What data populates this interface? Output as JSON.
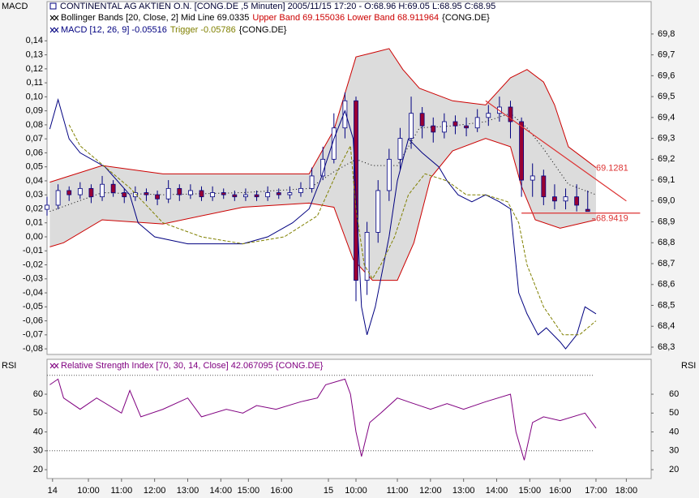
{
  "chart_data": [
    {
      "type": "candlestick",
      "title": "CONTINENTAL AG AKTIEN O.N. [CONG.DE ,5 Minuten] 2005/11/15 17:20 - O:68.96 H:69.05 L:68.95 C:68.95",
      "y_label": "MACD",
      "legend": [
        [
          {
            "text": "Bollinger Bands [20, Close, 2] Mid Line 69.0335",
            "color": "#000000"
          },
          {
            "text": "Upper Band 69.155036 Lower Band 68.911964",
            "color": "#cc0000"
          },
          {
            "text": "{CONG.DE}",
            "color": "#000000"
          }
        ],
        [
          {
            "text": "MACD [12, 26, 9] -0.05516",
            "color": "#000080"
          },
          {
            "text": "Trigger -0.05786",
            "color": "#808000"
          },
          {
            "text": "{CONG.DE}",
            "color": "#000000"
          }
        ]
      ],
      "xlim": [
        0,
        219
      ],
      "ylim": [
        -0.084,
        0.168
      ],
      "yticks": [
        {
          "value": 0.14,
          "label": "0,14"
        },
        {
          "value": 0.13,
          "label": "0,13"
        },
        {
          "value": 0.12,
          "label": "0,12"
        },
        {
          "value": 0.11,
          "label": "0,11"
        },
        {
          "value": 0.1,
          "label": "0,10"
        },
        {
          "value": 0.09,
          "label": "0,09"
        },
        {
          "value": 0.08,
          "label": "0,08"
        },
        {
          "value": 0.07,
          "label": "0,07"
        },
        {
          "value": 0.06,
          "label": "0,06"
        },
        {
          "value": 0.05,
          "label": "0,05"
        },
        {
          "value": 0.04,
          "label": "0,04"
        },
        {
          "value": 0.03,
          "label": "0,03"
        },
        {
          "value": 0.02,
          "label": "0,02"
        },
        {
          "value": 0.01,
          "label": "0,01"
        },
        {
          "value": 0,
          "label": "0,00"
        },
        {
          "value": -0.01,
          "label": "-0,01"
        },
        {
          "value": -0.02,
          "label": "-0,02"
        },
        {
          "value": -0.03,
          "label": "-0,03"
        },
        {
          "value": -0.04,
          "label": "-0,04"
        },
        {
          "value": -0.05,
          "label": "-0,05"
        },
        {
          "value": -0.06,
          "label": "-0,06"
        },
        {
          "value": -0.07,
          "label": "-0,07"
        },
        {
          "value": -0.08,
          "label": "-0,08"
        }
      ],
      "y2lim": [
        68.265,
        69.955
      ],
      "y2ticks": [
        {
          "value": 69.8,
          "label": "69,8"
        },
        {
          "value": 69.7,
          "label": "69,7"
        },
        {
          "value": 69.6,
          "label": "69,6"
        },
        {
          "value": 69.5,
          "label": "69,5"
        },
        {
          "value": 69.4,
          "label": "69,4"
        },
        {
          "value": 69.3,
          "label": "69,3"
        },
        {
          "value": 69.2,
          "label": "69,2"
        },
        {
          "value": 69.1,
          "label": "69,1"
        },
        {
          "value": 69.0,
          "label": "69,0"
        },
        {
          "value": 68.9,
          "label": "68,9"
        },
        {
          "value": 68.8,
          "label": "68,8"
        },
        {
          "value": 68.7,
          "label": "68,7"
        },
        {
          "value": 68.6,
          "label": "68,6"
        },
        {
          "value": 68.5,
          "label": "68,5"
        },
        {
          "value": 68.4,
          "label": "68,4"
        },
        {
          "value": 68.3,
          "label": "68,3"
        }
      ],
      "candles": {
        "axis": "y2",
        "up_color": "#ffffff",
        "down_color": "#990033",
        "wick_color": "#000080",
        "x": [
          0,
          4,
          8,
          12,
          16,
          20,
          24,
          28,
          32,
          36,
          40,
          44,
          48,
          52,
          56,
          60,
          64,
          68,
          72,
          76,
          80,
          84,
          88,
          92,
          96,
          100,
          104,
          108,
          112,
          116,
          120,
          124,
          128,
          132,
          136,
          140,
          144,
          148,
          152,
          156,
          160,
          164,
          168,
          172,
          176,
          180,
          184,
          188,
          192,
          196
        ],
        "open": [
          68.96,
          68.98,
          69.05,
          69.03,
          69.06,
          69.02,
          69.08,
          69.04,
          69.02,
          69.04,
          69.03,
          69.01,
          69.06,
          69.03,
          69.05,
          69.02,
          69.04,
          69.03,
          69.02,
          69.03,
          69.02,
          69.04,
          69.03,
          69.04,
          69.06,
          69.12,
          69.2,
          69.35,
          69.48,
          68.62,
          68.85,
          69.05,
          69.2,
          69.3,
          69.42,
          69.36,
          69.33,
          69.38,
          69.36,
          69.35,
          69.4,
          69.42,
          69.45,
          69.38,
          69.1,
          69.12,
          69.02,
          69.0,
          69.02,
          68.96
        ],
        "high": [
          69.02,
          69.08,
          69.07,
          69.09,
          69.08,
          69.12,
          69.1,
          69.06,
          69.07,
          69.06,
          69.05,
          69.1,
          69.08,
          69.08,
          69.07,
          69.07,
          69.06,
          69.05,
          69.06,
          69.05,
          69.07,
          69.06,
          69.07,
          69.09,
          69.16,
          69.26,
          69.42,
          69.52,
          69.5,
          68.9,
          69.1,
          69.25,
          69.35,
          69.5,
          69.45,
          69.4,
          69.42,
          69.41,
          69.4,
          69.44,
          69.46,
          69.5,
          69.48,
          69.4,
          69.18,
          69.15,
          69.08,
          69.06,
          69.08,
          69.05
        ],
        "low": [
          68.93,
          68.96,
          69.0,
          69.01,
          68.99,
          69.0,
          69.02,
          68.99,
          69.0,
          69.0,
          68.98,
          68.99,
          69.0,
          69.01,
          69.0,
          69.0,
          69.01,
          69.0,
          69.0,
          69.0,
          69.0,
          69.01,
          69.01,
          69.02,
          69.04,
          69.1,
          69.18,
          69.3,
          68.52,
          68.55,
          68.8,
          69.0,
          69.15,
          69.25,
          69.3,
          69.28,
          69.3,
          69.32,
          69.31,
          69.33,
          69.36,
          69.38,
          69.3,
          69.02,
          69.02,
          68.98,
          68.96,
          68.96,
          68.95,
          68.95
        ],
        "close": [
          68.98,
          69.05,
          69.03,
          69.06,
          69.02,
          69.08,
          69.04,
          69.02,
          69.04,
          69.03,
          69.01,
          69.06,
          69.03,
          69.05,
          69.02,
          69.04,
          69.03,
          69.02,
          69.03,
          69.02,
          69.04,
          69.03,
          69.04,
          69.06,
          69.12,
          69.2,
          69.35,
          69.48,
          68.62,
          68.85,
          69.05,
          69.2,
          69.3,
          69.42,
          69.36,
          69.33,
          69.38,
          69.36,
          69.35,
          69.4,
          69.42,
          69.45,
          69.38,
          69.1,
          69.12,
          69.02,
          69.0,
          69.02,
          68.98,
          68.95
        ]
      },
      "bands": {
        "axis": "y2",
        "color": "#cc0000",
        "fill": "#dcdcdc",
        "mid_color": "#000000",
        "upper": {
          "x": [
            1,
            20,
            42,
            71,
            95,
            104,
            112,
            118,
            124,
            129,
            135,
            147,
            159,
            168,
            174,
            180,
            184,
            189,
            195,
            199
          ],
          "values": [
            69.09,
            69.17,
            69.13,
            69.13,
            69.13,
            69.34,
            69.69,
            69.71,
            69.73,
            69.63,
            69.54,
            69.48,
            69.46,
            69.59,
            69.63,
            69.57,
            69.46,
            69.26,
            69.2,
            69.16
          ]
        },
        "lower": {
          "x": [
            1,
            6,
            20,
            42,
            71,
            95,
            104,
            111,
            118,
            127,
            133,
            139,
            147,
            159,
            168,
            172,
            177,
            186,
            199
          ],
          "values": [
            68.78,
            68.8,
            68.91,
            68.89,
            68.97,
            68.99,
            68.97,
            68.72,
            68.62,
            68.62,
            68.8,
            69.11,
            69.24,
            69.3,
            69.26,
            69.07,
            68.91,
            68.87,
            68.91
          ]
        },
        "mid": {
          "x": [
            1,
            20,
            42,
            71,
            95,
            104,
            112,
            118,
            127,
            135,
            147,
            159,
            168,
            174,
            180,
            189,
            199
          ],
          "values": [
            68.95,
            69.04,
            69.03,
            69.04,
            69.06,
            69.14,
            69.2,
            69.17,
            69.17,
            69.35,
            69.36,
            69.38,
            69.42,
            69.35,
            69.25,
            69.08,
            69.03
          ]
        }
      },
      "series": [
        {
          "color": "#000080",
          "dashed": false,
          "x": [
            1,
            4,
            8,
            12,
            21,
            30,
            33,
            39,
            51,
            62,
            71,
            80,
            89,
            95,
            99,
            104,
            108,
            111,
            114,
            116,
            119,
            121,
            124,
            127,
            131,
            136,
            142,
            145,
            149,
            154,
            159,
            164,
            168,
            169,
            171,
            174,
            178,
            181,
            186,
            188,
            192,
            195,
            199
          ],
          "values": [
            0.077,
            0.098,
            0.07,
            0.06,
            0.05,
            0.03,
            0.01,
            0,
            -0.005,
            -0.005,
            -0.005,
            0,
            0.01,
            0.02,
            0.04,
            0.07,
            0.09,
            0.07,
            -0.05,
            -0.07,
            -0.05,
            -0.03,
            0,
            0.04,
            0.07,
            0.06,
            0.05,
            0.04,
            0.03,
            0.025,
            0.03,
            0.025,
            0.02,
            0,
            -0.04,
            -0.055,
            -0.07,
            -0.065,
            -0.075,
            -0.08,
            -0.07,
            -0.05,
            -0.055
          ]
        },
        {
          "color": "#808000",
          "dashed": true,
          "x": [
            8,
            12,
            21,
            30,
            42,
            56,
            71,
            86,
            98,
            106,
            110,
            112,
            115,
            118,
            121,
            126,
            131,
            137,
            145,
            152,
            159,
            167,
            171,
            174,
            180,
            187,
            193,
            199
          ],
          "values": [
            0.08,
            0.065,
            0.05,
            0.035,
            0.01,
            0,
            -0.005,
            0,
            0.015,
            0.05,
            0.065,
            0.02,
            -0.02,
            -0.03,
            -0.02,
            0,
            0.03,
            0.045,
            0.04,
            0.03,
            0.03,
            0.025,
            0.01,
            -0.02,
            -0.05,
            -0.07,
            -0.07,
            -0.06
          ]
        }
      ],
      "trendlines": [
        {
          "color": "#dd3333",
          "x": [
            159,
            210
          ],
          "y": [
            69.48,
            69.0
          ],
          "value": 69.1281
        },
        {
          "color": "#dd3333",
          "x": [
            172,
            215
          ],
          "y": [
            68.9419,
            68.9419
          ],
          "value": 68.9419
        }
      ]
    },
    {
      "type": "line",
      "y_label": "RSI",
      "legend": [
        [
          {
            "text": "Relative Strength Index [70, 30, 14, Close] 42.067095 {CONG.DE}",
            "color": "#800080"
          }
        ]
      ],
      "xlim": [
        0,
        219
      ],
      "xticks": [
        {
          "value": 2,
          "label": "14"
        },
        {
          "value": 15,
          "label": "10:00"
        },
        {
          "value": 27,
          "label": "11:00"
        },
        {
          "value": 39,
          "label": "12:00"
        },
        {
          "value": 51,
          "label": "13:00"
        },
        {
          "value": 63,
          "label": "14:00"
        },
        {
          "value": 73,
          "label": "15:00"
        },
        {
          "value": 85,
          "label": "16:00"
        },
        {
          "value": 102,
          "label": "15"
        },
        {
          "value": 112,
          "label": "10:00"
        },
        {
          "value": 127,
          "label": "11:00"
        },
        {
          "value": 139,
          "label": "12:00"
        },
        {
          "value": 151,
          "label": "13:00"
        },
        {
          "value": 163,
          "label": "14:00"
        },
        {
          "value": 175,
          "label": "15:00"
        },
        {
          "value": 186,
          "label": "16:00"
        },
        {
          "value": 199,
          "label": "17:00"
        },
        {
          "value": 210,
          "label": "18:00"
        }
      ],
      "ylim": [
        15.3,
        78.5
      ],
      "yticks": [
        20,
        30,
        40,
        50,
        60
      ],
      "levels": [
        70,
        30
      ],
      "series": [
        {
          "color": "#800080",
          "x": [
            1,
            4,
            6,
            12,
            18,
            27,
            30,
            34,
            42,
            51,
            56,
            65,
            71,
            76,
            83,
            92,
            98,
            101,
            108,
            110,
            112,
            114,
            117,
            121,
            127,
            133,
            139,
            145,
            151,
            159,
            168,
            170,
            172,
            173,
            176,
            180,
            186,
            195,
            199
          ],
          "values": [
            65,
            68,
            58,
            52,
            58,
            50,
            62,
            48,
            52,
            58,
            48,
            52,
            50,
            54,
            52,
            56,
            58,
            65,
            68,
            60,
            40,
            27,
            45,
            50,
            58,
            55,
            52,
            55,
            52,
            56,
            60,
            40,
            30,
            25,
            45,
            48,
            46,
            50,
            42
          ]
        }
      ]
    }
  ]
}
